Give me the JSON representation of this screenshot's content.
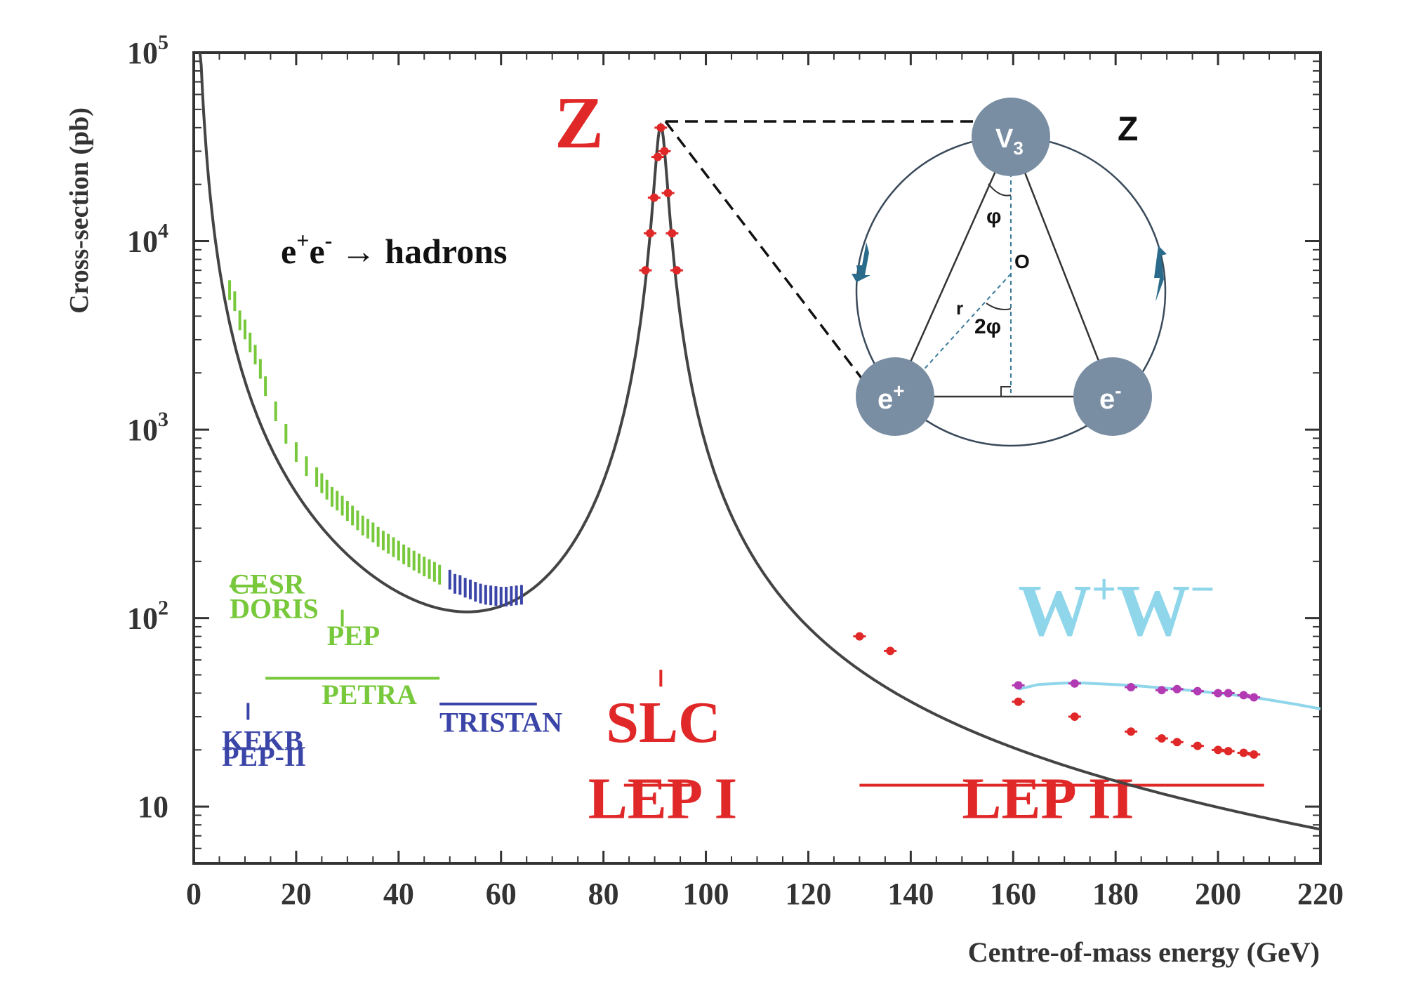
{
  "chart_data": {
    "type": "line",
    "title": "",
    "xlabel": "Centre-of-mass energy (GeV)",
    "ylabel": "Cross-section (pb)",
    "xlim": [
      0,
      220
    ],
    "ylim": [
      5,
      100000
    ],
    "yscale": "log",
    "grid": false,
    "x_ticks": [
      0,
      20,
      40,
      60,
      80,
      100,
      120,
      140,
      160,
      180,
      200,
      220
    ],
    "x_tick_labels": [
      "0",
      "20",
      "40",
      "60",
      "80",
      "100",
      "120",
      "140",
      "160",
      "180",
      "200",
      "220"
    ],
    "y_ticks": [
      {
        "value": 10,
        "label": "10",
        "exp": ""
      },
      {
        "value": 100,
        "label": "10",
        "exp": "2"
      },
      {
        "value": 1000,
        "label": "10",
        "exp": "3"
      },
      {
        "value": 10000,
        "label": "10",
        "exp": "4"
      },
      {
        "value": 100000,
        "label": "10",
        "exp": "5"
      }
    ],
    "reaction_label": {
      "pre": "e",
      "sup1": "+",
      "mid": "e",
      "sup2": "-",
      "arrow": " → ",
      "post": "hadrons"
    },
    "peak_label": "Z",
    "ww_label": {
      "w1": "W",
      "s1": "+",
      "w2": "W",
      "s2": "−"
    },
    "colors": {
      "curve": "#444444",
      "green": "#77c83a",
      "blue": "#3b45a8",
      "red": "#e02828",
      "magenta": "#b23ab3",
      "cyan": "#8fd6ea",
      "inset": "#7a8ea3"
    },
    "series": [
      {
        "color": "green",
        "points": [
          [
            7,
            5500
          ],
          [
            8,
            4800
          ],
          [
            9,
            3800
          ],
          [
            10,
            3400
          ],
          [
            11,
            2900
          ],
          [
            12,
            2500
          ],
          [
            13,
            2100
          ],
          [
            14,
            1700
          ],
          [
            16,
            1250
          ],
          [
            18,
            950
          ],
          [
            20,
            760
          ],
          [
            22,
            640
          ],
          [
            24,
            560
          ],
          [
            25,
            520
          ],
          [
            26,
            480
          ],
          [
            27,
            440
          ],
          [
            28,
            420
          ],
          [
            29,
            395
          ],
          [
            30,
            370
          ],
          [
            31,
            350
          ],
          [
            32,
            330
          ],
          [
            33,
            310
          ],
          [
            34,
            298
          ],
          [
            35,
            285
          ],
          [
            36,
            270
          ],
          [
            37,
            258
          ],
          [
            38,
            248
          ],
          [
            39,
            238
          ],
          [
            40,
            228
          ],
          [
            41,
            218
          ],
          [
            42,
            210
          ],
          [
            43,
            202
          ],
          [
            44,
            195
          ],
          [
            45,
            188
          ],
          [
            46,
            182
          ],
          [
            47,
            176
          ],
          [
            48,
            170
          ]
        ]
      },
      {
        "color": "blue",
        "points": [
          [
            50,
            160
          ],
          [
            51,
            152
          ],
          [
            52,
            150
          ],
          [
            53,
            145
          ],
          [
            54,
            142
          ],
          [
            55,
            138
          ],
          [
            56,
            135
          ],
          [
            57,
            133
          ],
          [
            58,
            132
          ],
          [
            59,
            131
          ],
          [
            60,
            130
          ],
          [
            61,
            130
          ],
          [
            62,
            131
          ],
          [
            63,
            132
          ],
          [
            64,
            133
          ]
        ]
      },
      {
        "color": "red",
        "points": [
          [
            88.2,
            7000
          ],
          [
            89.1,
            11000
          ],
          [
            89.9,
            17000
          ],
          [
            90.6,
            28000
          ],
          [
            91.2,
            40000
          ],
          [
            91.9,
            30000
          ],
          [
            92.6,
            18000
          ],
          [
            93.4,
            11000
          ],
          [
            94.3,
            7000
          ],
          [
            130,
            80
          ],
          [
            136,
            67
          ],
          [
            161,
            36
          ],
          [
            172,
            30
          ],
          [
            183,
            25
          ],
          [
            189,
            23
          ],
          [
            192,
            22
          ],
          [
            196,
            21
          ],
          [
            200,
            20
          ],
          [
            202,
            19.7
          ],
          [
            205,
            19.3
          ],
          [
            207,
            18.9
          ]
        ]
      },
      {
        "color": "magenta",
        "points": [
          [
            161,
            44
          ],
          [
            172,
            45
          ],
          [
            183,
            43
          ],
          [
            189,
            41.5
          ],
          [
            192,
            42
          ],
          [
            196,
            41
          ],
          [
            200,
            40
          ],
          [
            202,
            40
          ],
          [
            205,
            39
          ],
          [
            207,
            38
          ]
        ]
      }
    ],
    "ww_curve": [
      [
        161,
        42
      ],
      [
        165,
        44.5
      ],
      [
        172,
        45.5
      ],
      [
        183,
        44
      ],
      [
        192,
        42
      ],
      [
        200,
        40
      ],
      [
        207,
        38
      ],
      [
        215,
        35
      ],
      [
        220,
        33
      ]
    ],
    "experiments": [
      {
        "name": "CESR",
        "color": "green",
        "marker": "line",
        "x0": 7,
        "x1": 14,
        "marker_y": 148,
        "label_x": 7,
        "label_y": 135
      },
      {
        "name": "DORIS",
        "color": "green",
        "marker": "none",
        "x0": 0,
        "x1": 0,
        "marker_y": 0,
        "label_x": 7,
        "label_y": 100
      },
      {
        "name": "PEP",
        "color": "green",
        "marker": "tick",
        "x0": 29,
        "x1": 29,
        "marker_y": 100,
        "label_x": 26,
        "label_y": 72
      },
      {
        "name": "PETRA",
        "color": "green",
        "marker": "line",
        "x0": 14,
        "x1": 48,
        "marker_y": 48,
        "label_x": 25,
        "label_y": 35
      },
      {
        "name": "TRISTAN",
        "color": "blue",
        "marker": "line",
        "x0": 48,
        "x1": 67,
        "marker_y": 35,
        "label_x": 48,
        "label_y": 25
      },
      {
        "name": "KEKB",
        "color": "blue",
        "marker": "tick",
        "x0": 10.6,
        "x1": 10.6,
        "marker_y": 32,
        "label_x": 5.5,
        "label_y": 20
      },
      {
        "name": "PEP-II",
        "color": "blue",
        "marker": "none",
        "x0": 0,
        "x1": 0,
        "marker_y": 0,
        "label_x": 5.5,
        "label_y": 16.5
      },
      {
        "name": "SLC",
        "color": "red",
        "marker": "tick",
        "x0": 91.2,
        "x1": 91.2,
        "marker_y": 48,
        "label_x": 80.5,
        "label_y": 22
      },
      {
        "name": "LEP I",
        "color": "red",
        "marker": "line",
        "x0": 84,
        "x1": 97,
        "marker_y": 13,
        "label_x": 77,
        "label_y": 8.7
      },
      {
        "name": "LEP II",
        "color": "red",
        "marker": "line",
        "x0": 130,
        "x1": 209,
        "marker_y": 13,
        "label_x": 150,
        "label_y": 8.7
      }
    ],
    "inset": {
      "corner_label": "Z",
      "top_sphere": {
        "base": "V",
        "sub": "3"
      },
      "left_sphere": {
        "base": "e",
        "sup": "+"
      },
      "right_sphere": {
        "base": "e",
        "sup": "-"
      },
      "angle_label": "φ",
      "angle_label_2": "2φ",
      "center_label": "O",
      "radius_label": "r"
    }
  }
}
